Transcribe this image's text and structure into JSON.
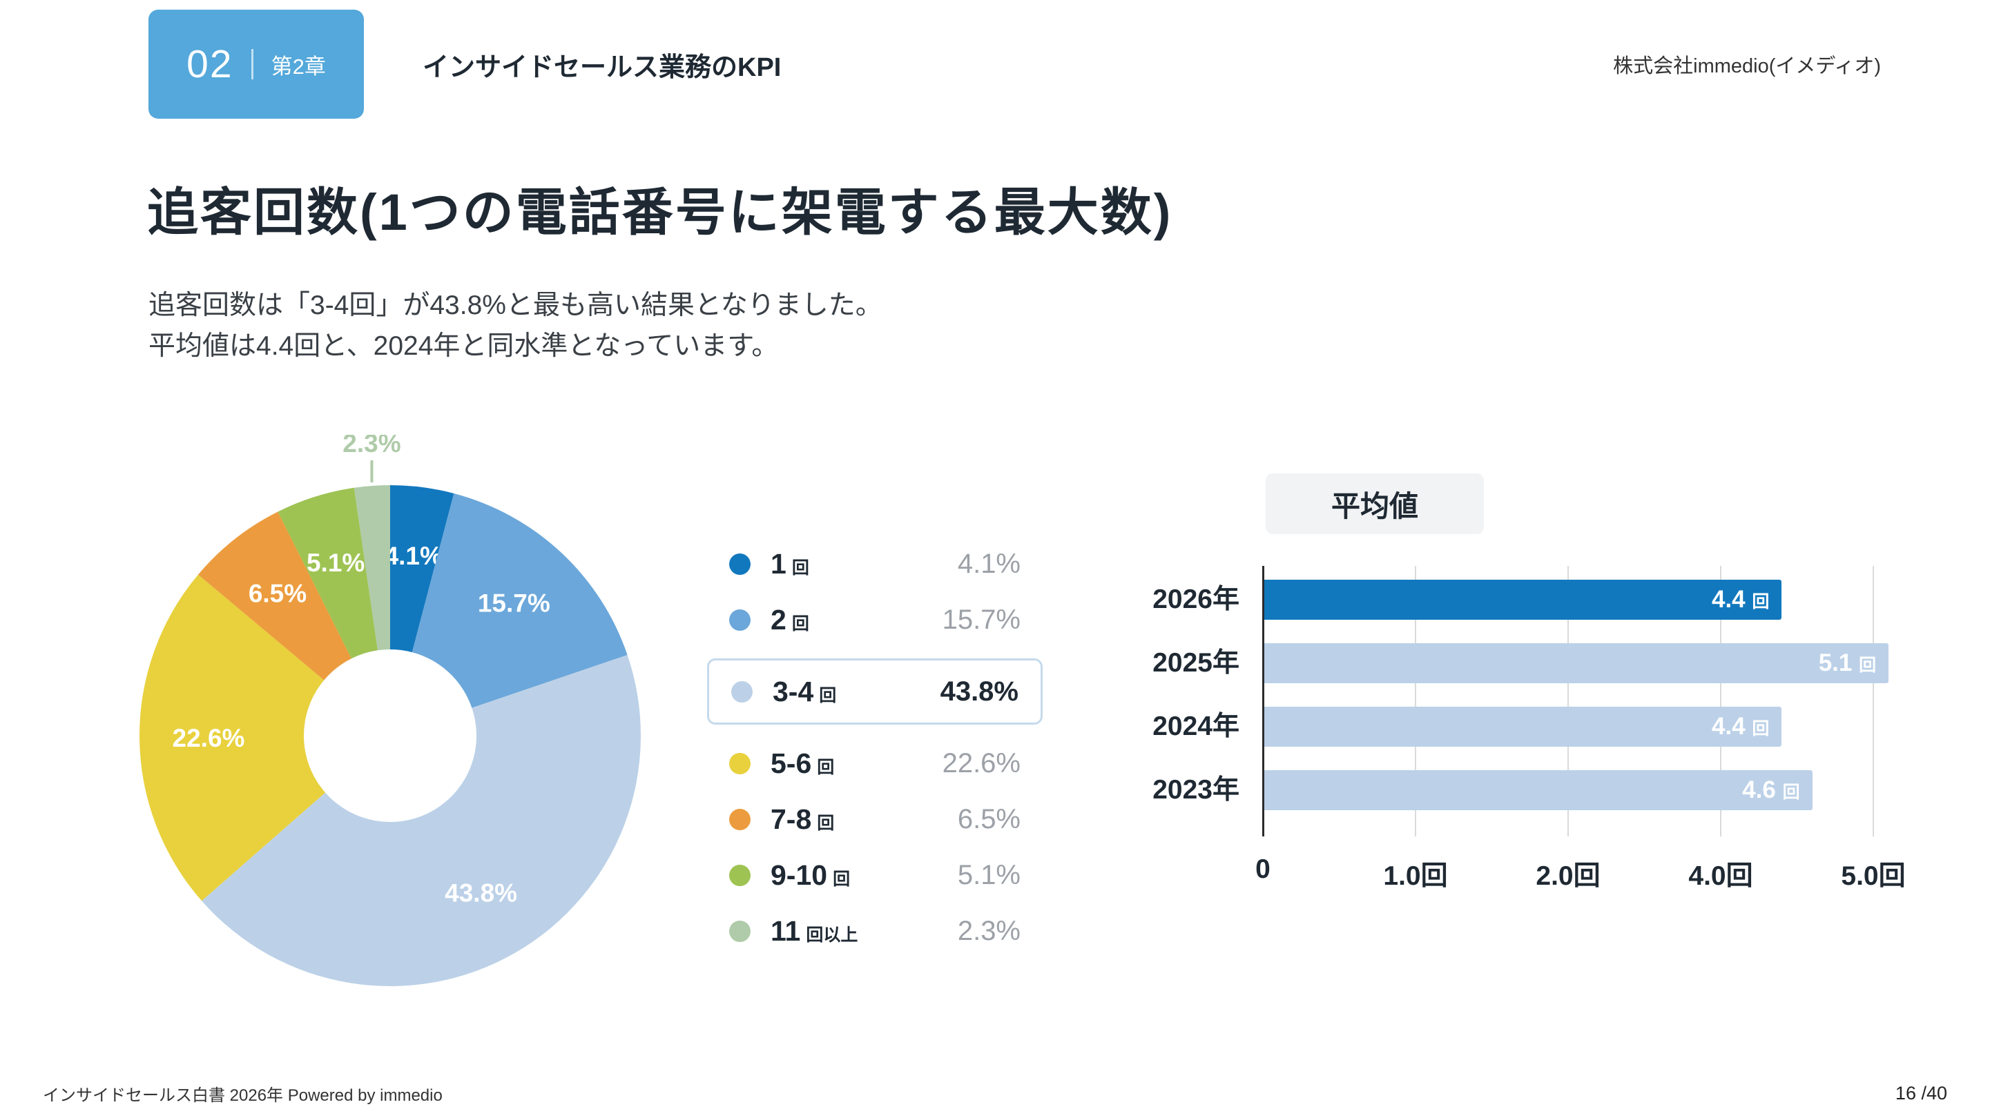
{
  "theme": {
    "badge_blue": "#54A8DB",
    "accent_blue": "#1278BE",
    "light_blue": "#BCD1E8",
    "highlight_border": "#C5DAEC",
    "muted_text": "#9CA1A7",
    "dark_text": "#1F2933"
  },
  "header": {
    "chapter_number": "02",
    "chapter_label": "第2章",
    "title": "インサイドセールス業務のKPI",
    "company": "株式会社immedio(イメディオ)"
  },
  "slide": {
    "title": "追客回数(1つの電話番号に架電する最大数)",
    "lead_line1": "追客回数は「3-4回」が43.8%と最も高い結果となりました。",
    "lead_line2": "平均値は4.4回と、2024年と同水準となっています。"
  },
  "chart_data": [
    {
      "type": "pie",
      "subtype": "donut",
      "start": "top",
      "direction": "clockwise",
      "segments": [
        {
          "label": "1",
          "unit": "回",
          "value": 4.1,
          "display": "4.1%",
          "color": "#1278BE"
        },
        {
          "label": "2",
          "unit": "回",
          "value": 15.7,
          "display": "15.7%",
          "color": "#6BA7DA"
        },
        {
          "label": "3-4",
          "unit": "回",
          "value": 43.8,
          "display": "43.8%",
          "color": "#BCD1E8",
          "highlighted": true
        },
        {
          "label": "5-6",
          "unit": "回",
          "value": 22.6,
          "display": "22.6%",
          "color": "#E8D13D"
        },
        {
          "label": "7-8",
          "unit": "回",
          "value": 6.5,
          "display": "6.5%",
          "color": "#EC9C3E"
        },
        {
          "label": "9-10",
          "unit": "回",
          "value": 5.1,
          "display": "5.1%",
          "color": "#9EC353"
        },
        {
          "label": "11",
          "unit": "回以上",
          "value": 2.3,
          "display": "2.3%",
          "color": "#AFCBA9",
          "label_outside": true
        }
      ]
    },
    {
      "type": "bar",
      "orientation": "horizontal",
      "title": "平均値",
      "categories": [
        "2026年",
        "2025年",
        "2024年",
        "2023年"
      ],
      "values": [
        4.4,
        5.1,
        4.4,
        4.6
      ],
      "value_labels": [
        {
          "num": "4.4",
          "unit": "回"
        },
        {
          "num": "5.1",
          "unit": "回"
        },
        {
          "num": "4.4",
          "unit": "回"
        },
        {
          "num": "4.6",
          "unit": "回"
        }
      ],
      "bar_colors": [
        "#1278BE",
        "#BCD1E8",
        "#BCD1E8",
        "#BCD1E8"
      ],
      "x_ticks": [
        {
          "label": "0",
          "value": 0
        },
        {
          "label": "1.0回",
          "value": 1
        },
        {
          "label": "2.0回",
          "value": 2
        },
        {
          "label": "4.0回",
          "value": 4
        },
        {
          "label": "5.0回",
          "value": 5
        }
      ]
    }
  ],
  "footer": {
    "left": "インサイドセールス白書 2026年 Powered by immedio",
    "page": "16 /40"
  }
}
